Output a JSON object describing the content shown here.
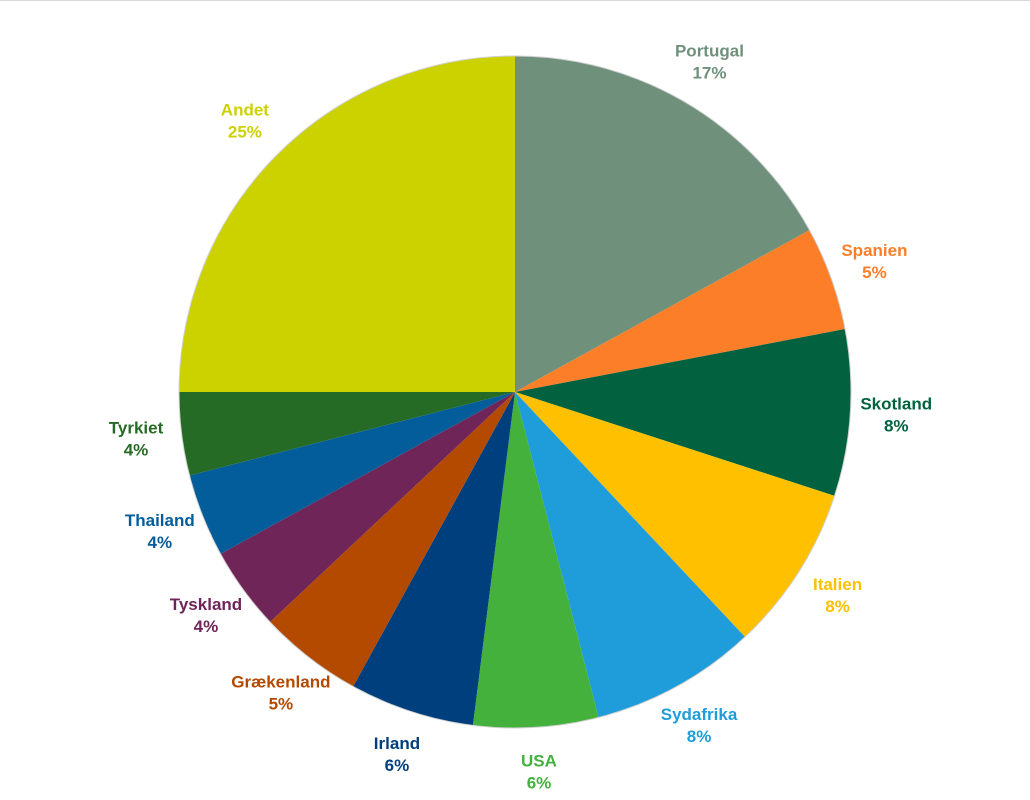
{
  "chart_data": {
    "type": "pie",
    "categories": [
      "Portugal",
      "Spanien",
      "Skotland",
      "Italien",
      "Sydafrika",
      "USA",
      "Irland",
      "Grækenland",
      "Tyskland",
      "Thailand",
      "Tyrkiet",
      "Andet"
    ],
    "values": [
      17,
      5,
      8,
      8,
      8,
      6,
      6,
      5,
      4,
      4,
      4,
      25
    ],
    "value_labels": [
      "17%",
      "5%",
      "8%",
      "8%",
      "8%",
      "6%",
      "6%",
      "5%",
      "4%",
      "4%",
      "4%",
      "25%"
    ],
    "colors": [
      "#6f917c",
      "#fc7e28",
      "#02623f",
      "#ffc000",
      "#1f9dda",
      "#43b13c",
      "#003f7e",
      "#b44900",
      "#6f2557",
      "#035d9b",
      "#256b25",
      "#ccd100"
    ]
  }
}
